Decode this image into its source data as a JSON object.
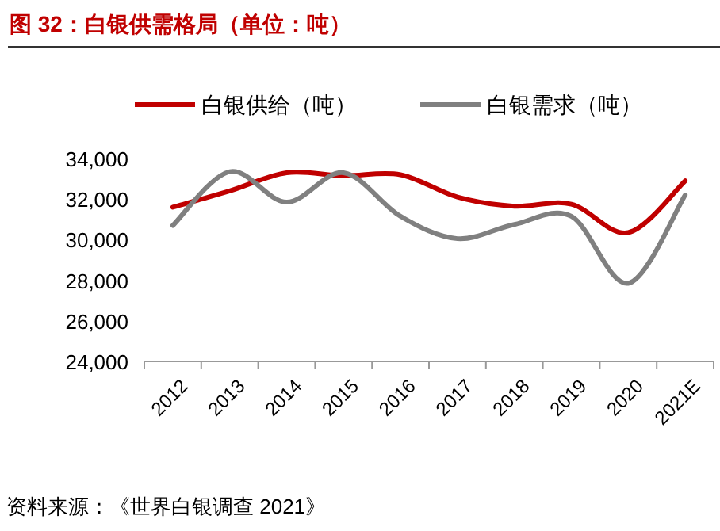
{
  "chart_data": {
    "type": "line",
    "title": "图 32：白银供需格局（单位：吨）",
    "categories": [
      "2012",
      "2013",
      "2014",
      "2015",
      "2016",
      "2017",
      "2018",
      "2019",
      "2020",
      "2021E"
    ],
    "series": [
      {
        "name": "白银供给（吨）",
        "color": "#c00000",
        "values": [
          31600,
          32400,
          33300,
          33150,
          33200,
          32100,
          31650,
          31750,
          30350,
          32900
        ]
      },
      {
        "name": "白银需求（吨）",
        "color": "#808080",
        "values": [
          30700,
          33350,
          31850,
          33300,
          31150,
          30050,
          30750,
          31150,
          27850,
          32200
        ]
      }
    ],
    "ylim": [
      24000,
      34000
    ],
    "yticks": [
      {
        "value": 24000,
        "label": "24,000"
      },
      {
        "value": 26000,
        "label": "26,000"
      },
      {
        "value": 28000,
        "label": "28,000"
      },
      {
        "value": 30000,
        "label": "30,000"
      },
      {
        "value": 32000,
        "label": "32,000"
      },
      {
        "value": 34000,
        "label": "34,000"
      }
    ],
    "legend": "top",
    "grid": false,
    "marker": "none",
    "line_style": "solid",
    "annotations": [
      "资料来源：《世界白银调查 2021》"
    ]
  }
}
